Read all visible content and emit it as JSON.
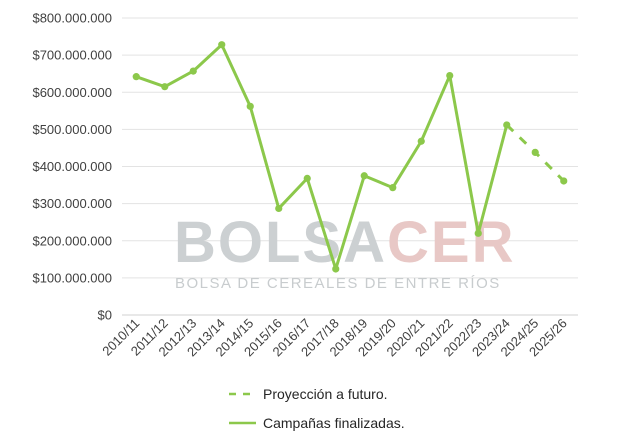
{
  "chart_data": {
    "type": "line",
    "categories": [
      "2010/11",
      "2011/12",
      "2012/13",
      "2013/14",
      "2014/15",
      "2015/16",
      "2016/17",
      "2017/18",
      "2018/19",
      "2019/20",
      "2020/21",
      "2021/22",
      "2022/23",
      "2023/24",
      "2024/25",
      "2025/26"
    ],
    "series": [
      {
        "name": "Campañas finalizadas.",
        "style": "solid",
        "values": [
          642000000,
          615000000,
          657000000,
          728000000,
          562000000,
          287000000,
          368000000,
          124000000,
          375000000,
          343000000,
          468000000,
          645000000,
          220000000,
          512000000,
          null,
          null
        ]
      },
      {
        "name": "Proyección a futuro.",
        "style": "dashed",
        "values": [
          null,
          null,
          null,
          null,
          null,
          null,
          null,
          null,
          null,
          null,
          null,
          null,
          null,
          512000000,
          438000000,
          361000000
        ]
      }
    ],
    "ylim": [
      0,
      800000000
    ],
    "yticks": [
      0,
      100000000,
      200000000,
      300000000,
      400000000,
      500000000,
      600000000,
      700000000,
      800000000
    ],
    "ytick_labels": [
      "$0",
      "$100.000.000",
      "$200.000.000",
      "$300.000.000",
      "$400.000.000",
      "$500.000.000",
      "$600.000.000",
      "$700.000.000",
      "$800.000.000"
    ],
    "grid": true,
    "legend_position": "bottom",
    "line_color": "#8cc84b",
    "watermark": {
      "main_left": "BOLSA",
      "main_right": "CER",
      "subtitle": "BOLSA DE CEREALES DE ENTRE RÍOS",
      "color_gray": "#ccd0d2",
      "color_red": "#e8c8c6"
    }
  }
}
